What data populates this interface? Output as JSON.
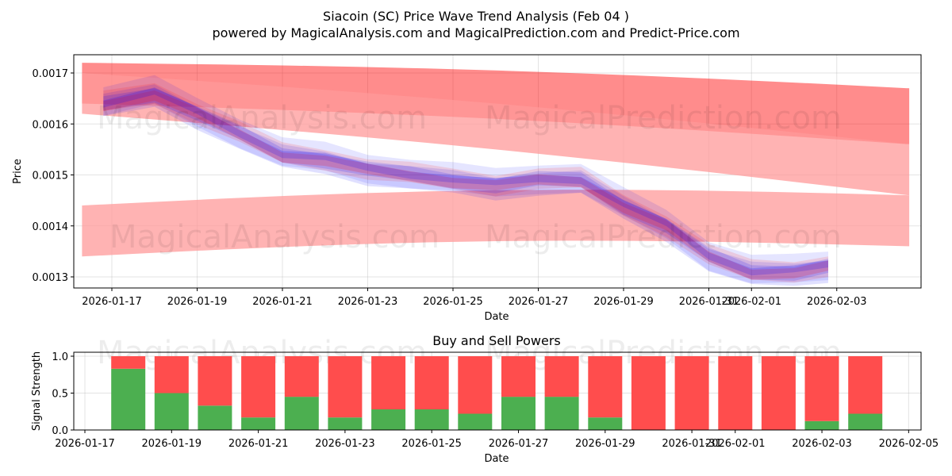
{
  "title_line1": "Siacoin (SC) Price Wave Trend Analysis (Feb 04 )",
  "title_line2": "powered by MagicalAnalysis.com and MagicalPrediction.com and Predict-Price.com",
  "watermarks": [
    "MagicalAnalysis.com",
    "MagicalPrediction.com"
  ],
  "colors": {
    "red": "#ff0000",
    "blue": "#0000ff",
    "buy": "#4caf50",
    "sell": "#ff4d4d",
    "band": "#ff9999"
  },
  "chart_data": [
    {
      "type": "area",
      "title": "",
      "xlabel": "Date",
      "ylabel": "Price",
      "grid": true,
      "x_ticks": [
        "2026-01-17",
        "2026-01-19",
        "2026-01-21",
        "2026-01-23",
        "2026-01-25",
        "2026-01-27",
        "2026-01-29",
        "2026-01-31",
        "2026-02-01",
        "2026-02-03"
      ],
      "y_ticks": [
        "0.0013",
        "0.0014",
        "0.0015",
        "0.0016",
        "0.0017"
      ],
      "ylim": [
        0.00128,
        0.00173
      ],
      "xlim_days": [
        -0.8,
        18.8
      ],
      "x_start": "2026-01-17",
      "price_days": [
        -0.2,
        1,
        2,
        3,
        4,
        5,
        6,
        7,
        8,
        9,
        10,
        11,
        12,
        13,
        14,
        15,
        16,
        16.8
      ],
      "price_values": [
        0.00164,
        0.00166,
        0.00162,
        0.00158,
        0.00154,
        0.00153,
        0.00151,
        0.0015,
        0.00149,
        0.00148,
        0.00149,
        0.00149,
        0.00144,
        0.0014,
        0.00134,
        0.00131,
        0.00131,
        0.00132
      ],
      "forecast_bands": [
        {
          "days": [
            -0.7,
            18.7
          ],
          "upper_start": 0.00172,
          "upper_end": 0.00167,
          "lower_start": 0.00164,
          "lower_end": 0.00156
        },
        {
          "days": [
            -0.7,
            18.7
          ],
          "upper_start": 0.0017,
          "upper_end": 0.00156,
          "lower_start": 0.00162,
          "lower_end": 0.00146
        },
        {
          "days": [
            -0.7,
            18.7
          ],
          "upper_start": 0.00144,
          "upper_end": 0.00146,
          "lower_start": 0.00134,
          "lower_end": 0.00136
        }
      ]
    },
    {
      "type": "bar",
      "title": "Buy and Sell Powers",
      "xlabel": "Date",
      "ylabel": "Signal Strength",
      "ylim": [
        0,
        1.05
      ],
      "y_ticks": [
        "0.0",
        "0.5",
        "1.0"
      ],
      "x_ticks": [
        "2026-01-17",
        "2026-01-19",
        "2026-01-21",
        "2026-01-23",
        "2026-01-25",
        "2026-01-27",
        "2026-01-29",
        "2026-01-31",
        "2026-02-01",
        "2026-02-03",
        "2026-02-05"
      ],
      "categories": [
        "2026-01-18",
        "2026-01-19",
        "2026-01-20",
        "2026-01-21",
        "2026-01-22",
        "2026-01-23",
        "2026-01-24",
        "2026-01-25",
        "2026-01-26",
        "2026-01-27",
        "2026-01-28",
        "2026-01-29",
        "2026-01-30",
        "2026-01-31",
        "2026-02-01",
        "2026-02-02",
        "2026-02-03",
        "2026-02-04"
      ],
      "series": [
        {
          "name": "Buy",
          "values": [
            0.83,
            0.5,
            0.33,
            0.17,
            0.45,
            0.17,
            0.28,
            0.28,
            0.22,
            0.45,
            0.45,
            0.17,
            0.0,
            0.0,
            0.0,
            0.0,
            0.12,
            0.22
          ]
        },
        {
          "name": "Sell",
          "values": [
            0.17,
            0.5,
            0.67,
            0.83,
            0.55,
            0.83,
            0.72,
            0.72,
            0.78,
            0.55,
            0.55,
            0.83,
            1.0,
            1.0,
            1.0,
            1.0,
            0.88,
            0.78
          ]
        }
      ]
    }
  ]
}
